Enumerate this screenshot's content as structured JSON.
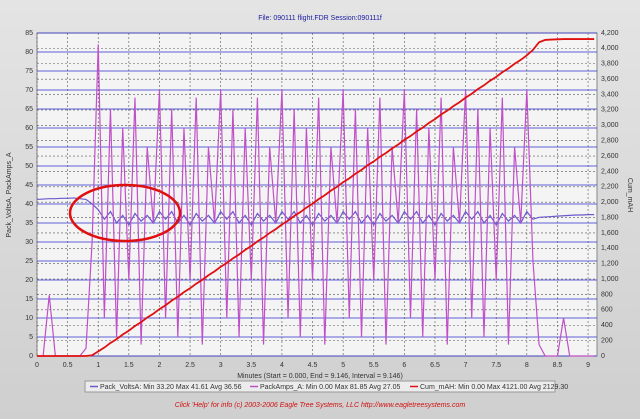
{
  "chart_data": {
    "type": "line",
    "title": "File: 090111 flight.FDR   Session:090111f",
    "xlabel": "Minutes (Start = 0.000, End = 9.146, Interval = 9.146)",
    "ylabel": "Pack_VoltsA, PackAmps_A",
    "y2label": "Cum_mAH",
    "footer": "Click 'Help' for info (c) 2003-2006 Eagle Tree Systems, LLC      http://www.eagletreesystems.com",
    "xlim": [
      0,
      9.146
    ],
    "xticks": [
      0,
      0.5,
      1,
      1.5,
      2,
      2.5,
      3,
      3.5,
      4,
      4.5,
      5,
      5.5,
      6,
      6.5,
      7,
      7.5,
      8,
      8.5,
      9
    ],
    "ylim": [
      0,
      85
    ],
    "yticks": [
      0,
      5,
      10,
      15,
      20,
      25,
      30,
      35,
      40,
      45,
      50,
      55,
      60,
      65,
      70,
      75,
      80,
      85
    ],
    "y2lim": [
      0,
      4200
    ],
    "y2ticks": [
      0,
      200,
      400,
      600,
      800,
      {
        "value": 1000,
        "label": "1,000"
      },
      {
        "value": 1200,
        "label": "1,200"
      },
      {
        "value": 1400,
        "label": "1,400"
      },
      {
        "value": 1600,
        "label": "1,600"
      },
      {
        "value": 1800,
        "label": "1,800"
      },
      {
        "value": 2000,
        "label": "2,000"
      },
      {
        "value": 2200,
        "label": "2,200"
      },
      {
        "value": 2400,
        "label": "2,400"
      },
      {
        "value": 2600,
        "label": "2,600"
      },
      {
        "value": 2800,
        "label": "2,800"
      },
      {
        "value": 3000,
        "label": "3,000"
      },
      {
        "value": 3200,
        "label": "3,200"
      },
      {
        "value": 3400,
        "label": "3,400"
      },
      {
        "value": 3600,
        "label": "3,600"
      },
      {
        "value": 3800,
        "label": "3,800"
      },
      {
        "value": 4000,
        "label": "4,000"
      },
      {
        "value": 4200,
        "label": "4,200"
      }
    ],
    "grid": true,
    "x": [
      0,
      0.1,
      0.2,
      0.3,
      0.4,
      0.5,
      0.6,
      0.7,
      0.8,
      0.9,
      1,
      1.1,
      1.2,
      1.3,
      1.4,
      1.5,
      1.6,
      1.7,
      1.8,
      1.9,
      2,
      2.1,
      2.2,
      2.3,
      2.4,
      2.5,
      2.6,
      2.7,
      2.8,
      2.9,
      3,
      3.1,
      3.2,
      3.3,
      3.4,
      3.5,
      3.6,
      3.7,
      3.8,
      3.9,
      4,
      4.1,
      4.2,
      4.3,
      4.4,
      4.5,
      4.6,
      4.7,
      4.8,
      4.9,
      5,
      5.1,
      5.2,
      5.3,
      5.4,
      5.5,
      5.6,
      5.7,
      5.8,
      5.9,
      6,
      6.1,
      6.2,
      6.3,
      6.4,
      6.5,
      6.6,
      6.7,
      6.8,
      6.9,
      7,
      7.1,
      7.2,
      7.3,
      7.4,
      7.5,
      7.6,
      7.7,
      7.8,
      7.9,
      8,
      8.1,
      8.2,
      8.3,
      8.4,
      8.5,
      8.6,
      8.7,
      8.8,
      8.9,
      9,
      9.1
    ],
    "series": [
      {
        "name": "Pack_VoltsA",
        "stats": ":  Min 33.20    Max 41.61    Avg 36.56",
        "color": "#6a5acd",
        "values": [
          41.2,
          41.3,
          41.4,
          41.4,
          41.5,
          41.5,
          41.6,
          41.4,
          41.2,
          40.0,
          38.5,
          36,
          38,
          35,
          37,
          34.5,
          37.5,
          35.5,
          37,
          35,
          38,
          36,
          38,
          35,
          37,
          34.5,
          37.5,
          35.5,
          37,
          35,
          38,
          36,
          38,
          35,
          37,
          34.5,
          37.5,
          35.5,
          37,
          35,
          38,
          36,
          38,
          35,
          37,
          34.5,
          37.5,
          35.5,
          37,
          35,
          38,
          36,
          38,
          35,
          37,
          34.5,
          37.5,
          35.5,
          37,
          35,
          38,
          36,
          38,
          35,
          37,
          34.5,
          37.5,
          35.5,
          37,
          35,
          38,
          36,
          38,
          35,
          37,
          34.5,
          37.5,
          35.5,
          37,
          35,
          38,
          36,
          36.5,
          36.6,
          36.7,
          36.8,
          36.9,
          37,
          37.1,
          37.1,
          37.2,
          37.2
        ]
      },
      {
        "name": "PackAmps_A",
        "stats": ":  Min 0.00    Max 81.85    Avg 27.05",
        "color": "#c050c8",
        "values": [
          0,
          0,
          16,
          0,
          0,
          0,
          0,
          0,
          2,
          30,
          82,
          10,
          65,
          5,
          60,
          20,
          68,
          3,
          55,
          35,
          70,
          10,
          65,
          5,
          60,
          20,
          68,
          3,
          55,
          35,
          70,
          10,
          65,
          5,
          60,
          20,
          68,
          3,
          55,
          35,
          70,
          10,
          65,
          5,
          60,
          20,
          68,
          3,
          55,
          35,
          70,
          10,
          65,
          5,
          60,
          20,
          68,
          3,
          55,
          35,
          70,
          10,
          65,
          5,
          60,
          20,
          68,
          3,
          55,
          35,
          70,
          10,
          65,
          5,
          60,
          20,
          68,
          3,
          55,
          35,
          70,
          25,
          3,
          0,
          0,
          0,
          10,
          0,
          0,
          0,
          0,
          0
        ]
      },
      {
        "name": "Cum_mAH",
        "stats": ":  Min 0.00    Max 4121.00    Avg 2129.30",
        "color": "#e01010",
        "axis": "y2",
        "values": [
          0,
          0,
          0,
          0,
          0,
          0,
          0,
          0,
          0,
          10,
          60,
          110,
          170,
          220,
          280,
          330,
          390,
          440,
          500,
          550,
          610,
          660,
          720,
          770,
          830,
          880,
          940,
          990,
          1050,
          1100,
          1160,
          1210,
          1270,
          1320,
          1380,
          1430,
          1490,
          1540,
          1600,
          1650,
          1710,
          1760,
          1820,
          1870,
          1930,
          1980,
          2040,
          2090,
          2150,
          2200,
          2260,
          2310,
          2370,
          2420,
          2480,
          2530,
          2590,
          2640,
          2700,
          2750,
          2810,
          2860,
          2920,
          2970,
          3030,
          3080,
          3140,
          3190,
          3250,
          3300,
          3360,
          3410,
          3470,
          3520,
          3580,
          3630,
          3690,
          3740,
          3800,
          3850,
          3910,
          3980,
          4080,
          4110,
          4115,
          4118,
          4121,
          4121,
          4121,
          4121,
          4121,
          4121
        ]
      }
    ]
  }
}
